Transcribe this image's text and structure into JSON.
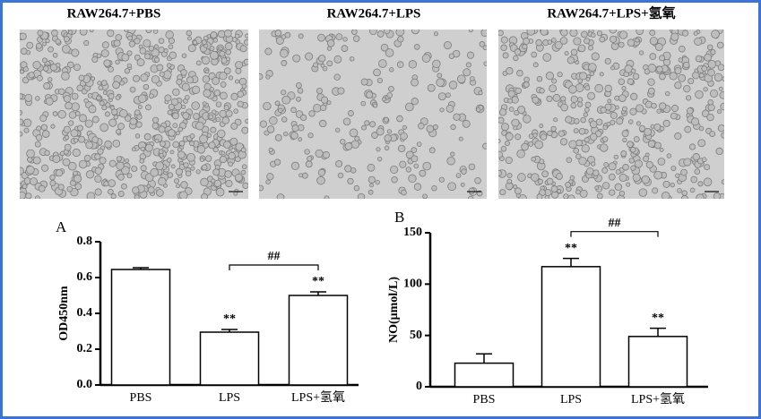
{
  "images": [
    {
      "title": "RAW264.7+PBS"
    },
    {
      "title": "RAW264.7+LPS"
    },
    {
      "title": "RAW264.7+LPS+氢氧"
    }
  ],
  "chart_data": [
    {
      "type": "bar",
      "panel": "A",
      "y_label": "OD450nm",
      "categories": [
        "PBS",
        "LPS",
        "LPS+氢氧"
      ],
      "values": [
        0.645,
        0.295,
        0.5
      ],
      "errors": [
        0.01,
        0.015,
        0.02
      ],
      "color": "#ffffff",
      "ylim": [
        0,
        0.8
      ],
      "yticks": [
        {
          "value": 0,
          "label": "0.0"
        },
        0.2,
        0.4,
        0.6,
        0.8
      ],
      "significance": [
        null,
        "**",
        "**"
      ],
      "bracket": "##"
    },
    {
      "type": "bar",
      "panel": "B",
      "y_label": "NO(μmol/L)",
      "categories": [
        "PBS",
        "LPS",
        "LPS+氢氧"
      ],
      "values": [
        23,
        117,
        49
      ],
      "errors": [
        9,
        8,
        8
      ],
      "color": "#ffffff",
      "ylim": [
        0,
        150
      ],
      "yticks": [
        0,
        50,
        100,
        150
      ],
      "significance": [
        null,
        "**",
        "**"
      ],
      "bracket": "##"
    }
  ]
}
